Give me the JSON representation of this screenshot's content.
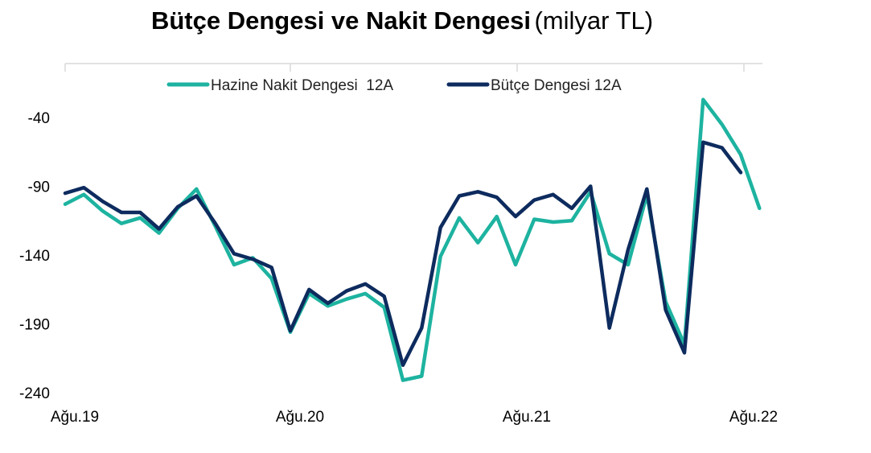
{
  "title": {
    "main": "Bütçe Dengesi ve Nakit Dengesi",
    "unit": "(milyar TL)"
  },
  "chart_data": {
    "type": "line",
    "title": "Bütçe Dengesi ve Nakit Dengesi (milyar TL)",
    "xlabel": "",
    "ylabel": "",
    "x_tick_labels": [
      "Ağu.19",
      "Ağu.20",
      "Ağu.21",
      "Ağu.22"
    ],
    "y_ticks": [
      -40,
      -90,
      -140,
      -190,
      -240
    ],
    "ylim": [
      -240,
      -20
    ],
    "grid": false,
    "legend_position": "top-center",
    "series": [
      {
        "name": "Hazine Nakit Dengesi  12A",
        "color": "#1db3a0",
        "values": [
          -103,
          -96,
          -108,
          -117,
          -113,
          -124,
          -106,
          -92,
          -119,
          -147,
          -142,
          -157,
          -196,
          -168,
          -177,
          -172,
          -168,
          -178,
          -231,
          -228,
          -141,
          -113,
          -131,
          -112,
          -147,
          -114,
          -116,
          -115,
          -94,
          -139,
          -147,
          -96,
          -174,
          -205,
          -27,
          -45,
          -67,
          -106
        ]
      },
      {
        "name": "Bütçe Dengesi 12A",
        "color": "#0d2b5e",
        "values": [
          -95,
          -91,
          -101,
          -109,
          -109,
          -121,
          -105,
          -97,
          -117,
          -139,
          -143,
          -149,
          -195,
          -165,
          -175,
          -166,
          -161,
          -170,
          -220,
          -193,
          -120,
          -97,
          -94,
          -98,
          -112,
          -100,
          -96,
          -106,
          -90,
          -193,
          -136,
          -92,
          -180,
          -211,
          -58,
          -62,
          -80
        ]
      }
    ]
  }
}
